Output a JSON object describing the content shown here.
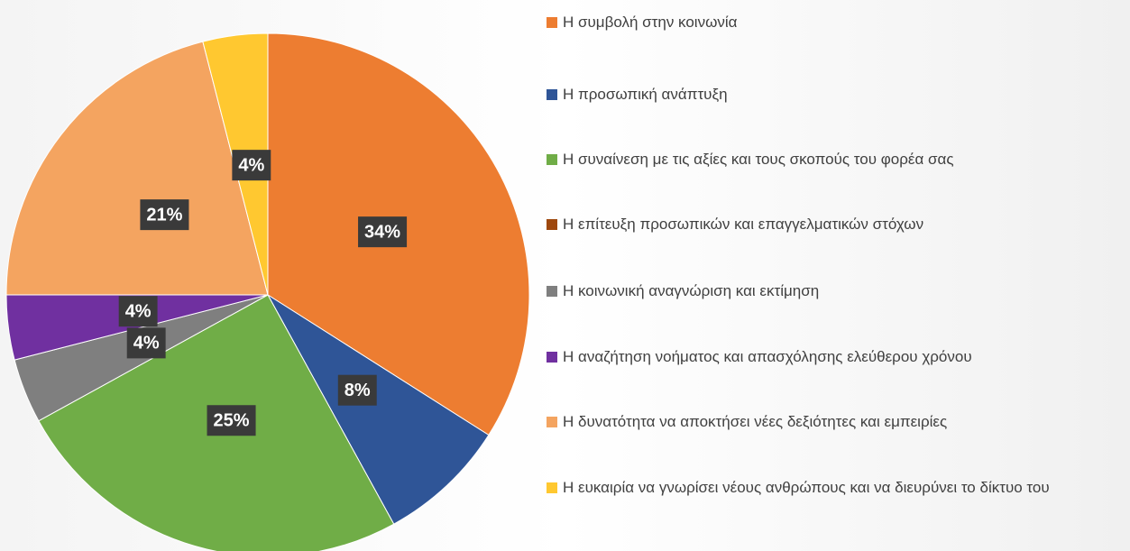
{
  "chart_data": {
    "type": "pie",
    "categories": [
      "Η συμβολή στην κοινωνία",
      "Η προσωπική ανάπτυξη",
      "Η συναίνεση με τις αξίες και τους σκοπούς του φορέα σας",
      "Η επίτευξη προσωπικών και επαγγελματικών στόχων",
      "Η κοινωνική αναγνώριση και εκτίμηση",
      "Η αναζήτηση νοήματος και απασχόλησης ελεύθερου χρόνου",
      "Η δυνατότητα να αποκτήσει νέες δεξιότητες και εμπειρίες",
      "Η ευκαιρία να γνωρίσει νέους ανθρώπους και να διευρύνει το δίκτυο του"
    ],
    "values": [
      34,
      8,
      25,
      0,
      4,
      4,
      21,
      4
    ],
    "value_labels": [
      "34%",
      "8%",
      "25%",
      null,
      "4%",
      "4%",
      "21%",
      "4%"
    ],
    "colors": [
      "#ed7d31",
      "#2f5597",
      "#70ad47",
      "#9e480e",
      "#7f7f7f",
      "#7030a0",
      "#f4a460",
      "#ffc830"
    ],
    "legend": "right"
  }
}
